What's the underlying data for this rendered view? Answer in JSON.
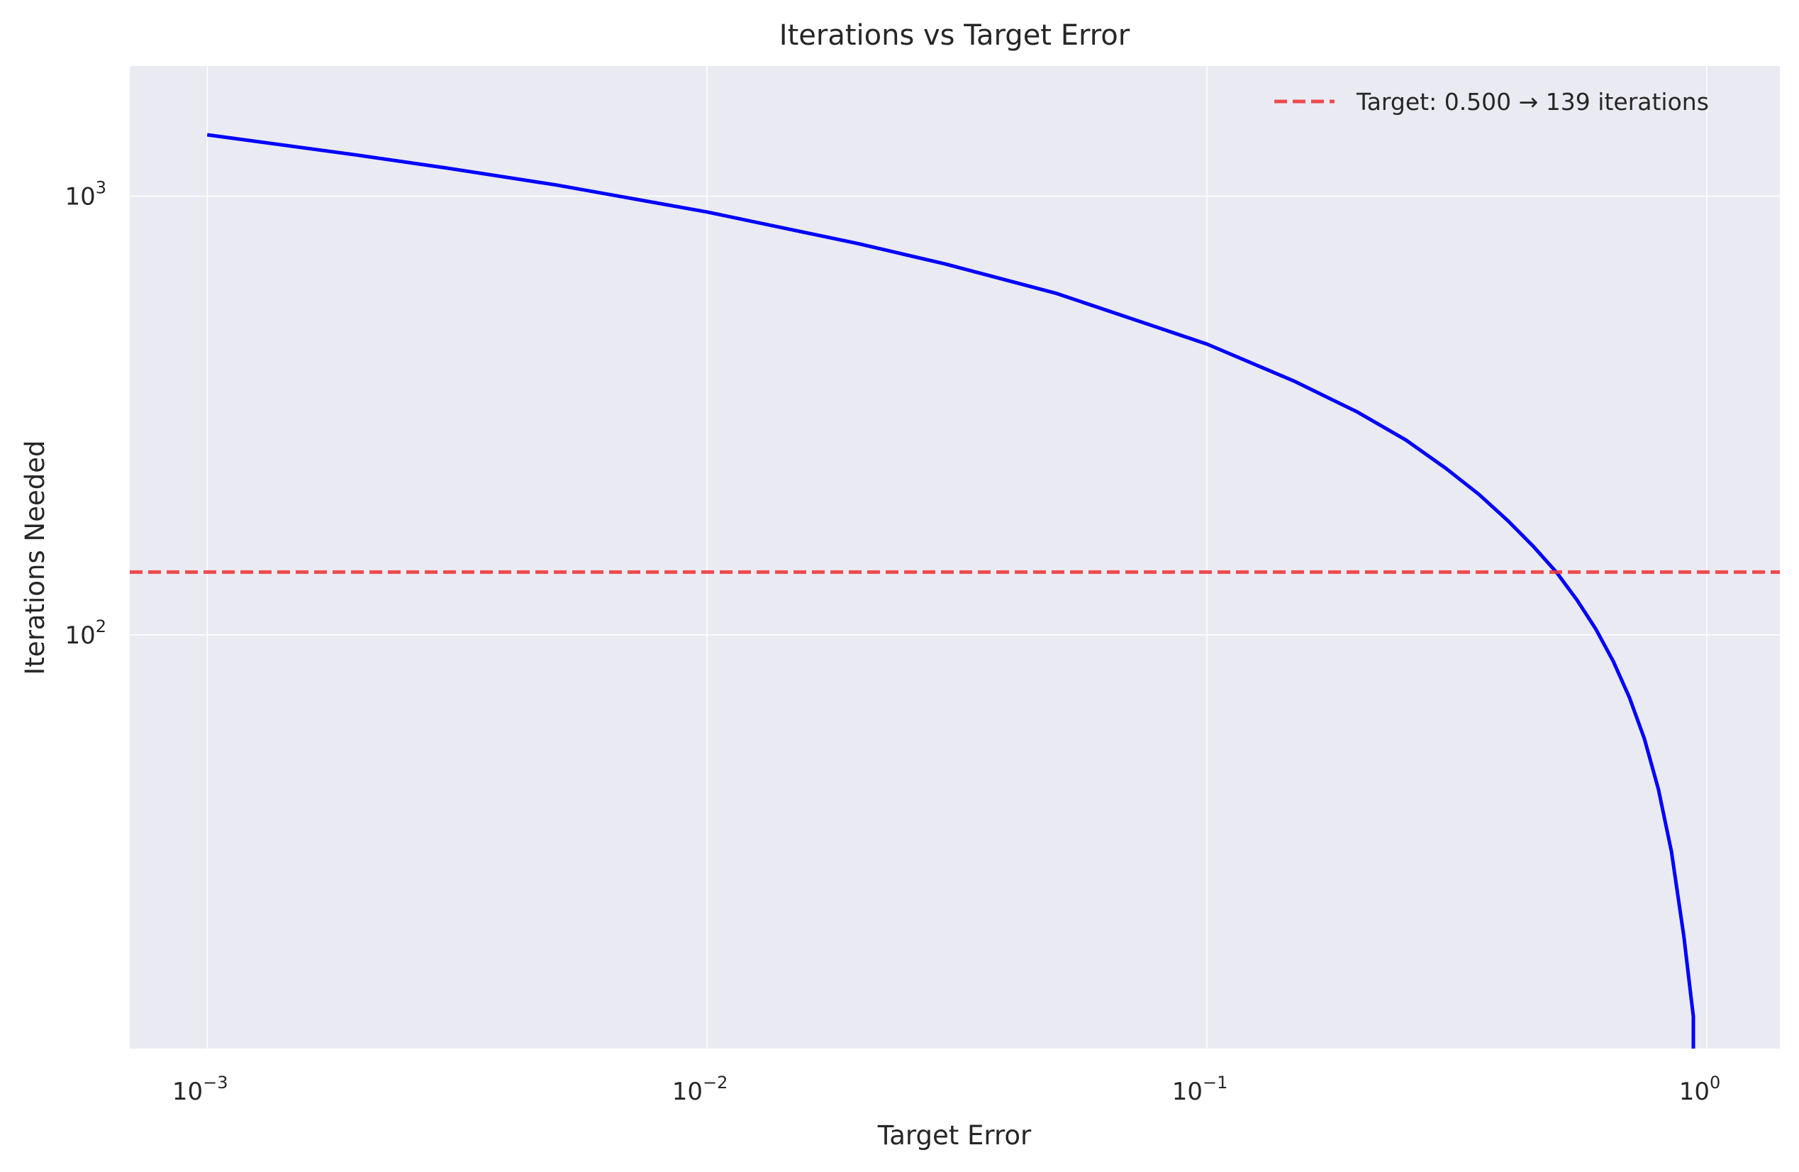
{
  "chart_data": {
    "type": "line",
    "title": "Iterations vs Target Error",
    "xlabel": "Target Error",
    "ylabel": "Iterations Needed",
    "xscale": "log",
    "yscale": "log",
    "xlim": [
      0.0007,
      1.4
    ],
    "ylim": [
      11.4,
      1980
    ],
    "xticks": [
      {
        "value": 0.001,
        "base": "10",
        "exp": "−3"
      },
      {
        "value": 0.01,
        "base": "10",
        "exp": "−2"
      },
      {
        "value": 0.1,
        "base": "10",
        "exp": "−1"
      },
      {
        "value": 1,
        "base": "10",
        "exp": "0"
      }
    ],
    "yticks": [
      {
        "value": 100,
        "base": "10",
        "exp": "2"
      },
      {
        "value": 1000,
        "base": "10",
        "exp": "3"
      }
    ],
    "grid": true,
    "legend_position": "top-right",
    "series": [
      {
        "color": "#0000ff",
        "style": "solid",
        "x": [
          0.001,
          0.002,
          0.003,
          0.005,
          0.01,
          0.02,
          0.03,
          0.05,
          0.1,
          0.15,
          0.2,
          0.25,
          0.3,
          0.35,
          0.4,
          0.45,
          0.5,
          0.55,
          0.6,
          0.65,
          0.7,
          0.75,
          0.8,
          0.85,
          0.9,
          0.93,
          0.94,
          0.94
        ],
        "y": [
          1380,
          1240,
          1160,
          1060,
          920,
          780,
          700,
          600,
          460,
          378,
          322,
          278,
          240,
          209,
          182,
          159,
          139,
          120,
          103,
          87,
          72,
          58,
          44.5,
          32,
          20.5,
          14.9,
          13.5,
          11.4
        ]
      },
      {
        "name": "Target: 0.500 → 139 iterations",
        "color": "#f0393c",
        "style": "dashed",
        "hline": 139
      }
    ]
  }
}
